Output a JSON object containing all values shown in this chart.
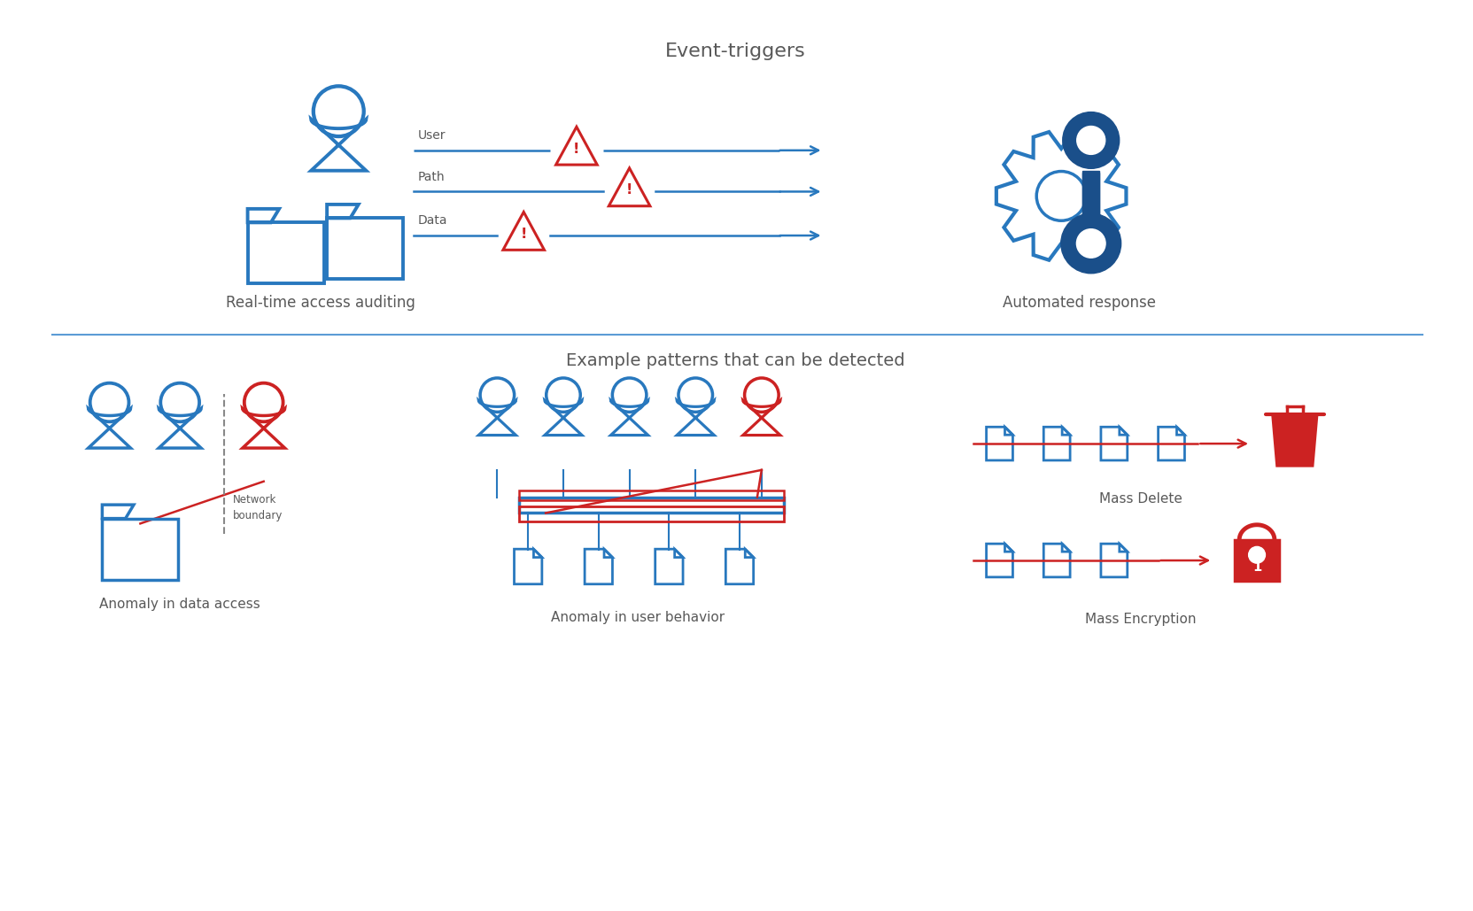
{
  "bg_color": "#ffffff",
  "blue": "#2878BE",
  "dark_blue": "#1a4f8a",
  "red": "#CC2222",
  "line_color": "#5B9BD5",
  "text_color": "#595959",
  "title_top": "Event-triggers",
  "label_left": "Real-time access auditing",
  "label_right": "Automated response",
  "title_bottom": "Example patterns that can be detected",
  "label_anomaly_data": "Anomaly in data access",
  "label_anomaly_user": "Anomaly in user behavior",
  "label_mass_delete": "Mass Delete",
  "label_mass_encrypt": "Mass Encryption",
  "arrow_labels": [
    "User",
    "Path",
    "Data"
  ],
  "network_boundary": "Network\nboundary",
  "fig_w": 16.63,
  "fig_h": 10.29
}
